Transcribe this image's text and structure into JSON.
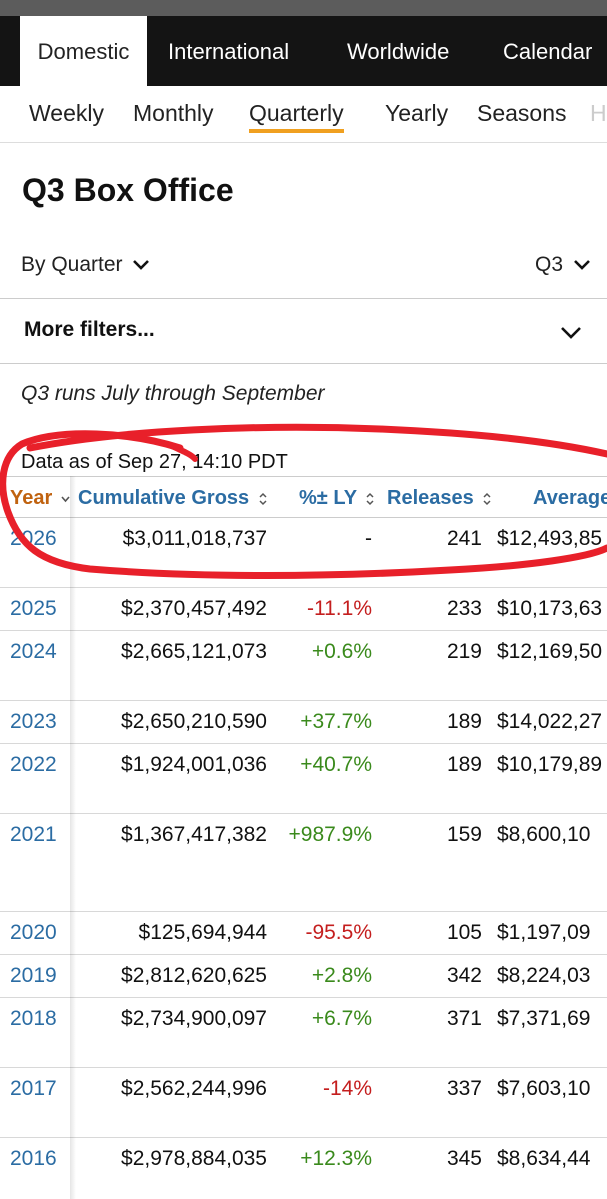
{
  "top_nav": {
    "tabs": [
      {
        "label": "Domestic"
      },
      {
        "label": "International"
      },
      {
        "label": "Worldwide"
      },
      {
        "label": "Calendar"
      }
    ]
  },
  "sub_nav": {
    "items": [
      {
        "label": "Weekly"
      },
      {
        "label": "Monthly"
      },
      {
        "label": "Quarterly"
      },
      {
        "label": "Yearly"
      },
      {
        "label": "Seasons"
      },
      {
        "label": "H"
      }
    ]
  },
  "page_title": "Q3 Box Office",
  "filters": {
    "by_label": "By Quarter",
    "quarter_value": "Q3",
    "more_filters": "More filters..."
  },
  "note": "Q3 runs July through September",
  "as_of": "Data as of Sep 27, 14:10 PDT",
  "table": {
    "headers": [
      "Year",
      "Cumulative Gross",
      "%± LY",
      "Releases",
      "Average"
    ],
    "rows": [
      {
        "year": "2026",
        "gross": "$3,011,018,737",
        "pct": "-",
        "releases": "241",
        "average": "$12,493,85"
      },
      {
        "year": "2025",
        "gross": "$2,370,457,492",
        "pct": "-11.1%",
        "releases": "233",
        "average": "$10,173,63"
      },
      {
        "year": "2024",
        "gross": "$2,665,121,073",
        "pct": "+0.6%",
        "releases": "219",
        "average": "$12,169,50"
      },
      {
        "year": "2023",
        "gross": "$2,650,210,590",
        "pct": "+37.7%",
        "releases": "189",
        "average": "$14,022,27"
      },
      {
        "year": "2022",
        "gross": "$1,924,001,036",
        "pct": "+40.7%",
        "releases": "189",
        "average": "$10,179,89"
      },
      {
        "year": "2021",
        "gross": "$1,367,417,382",
        "pct": "+987.9%",
        "releases": "159",
        "average": "$8,600,10"
      },
      {
        "year": "2020",
        "gross": "$125,694,944",
        "pct": "-95.5%",
        "releases": "105",
        "average": "$1,197,09"
      },
      {
        "year": "2019",
        "gross": "$2,812,620,625",
        "pct": "+2.8%",
        "releases": "342",
        "average": "$8,224,03"
      },
      {
        "year": "2018",
        "gross": "$2,734,900,097",
        "pct": "+6.7%",
        "releases": "371",
        "average": "$7,371,69"
      },
      {
        "year": "2017",
        "gross": "$2,562,244,996",
        "pct": "-14%",
        "releases": "337",
        "average": "$7,603,10"
      },
      {
        "year": "2016",
        "gross": "$2,978,884,035",
        "pct": "+12.3%",
        "releases": "345",
        "average": "$8,634,44"
      }
    ]
  },
  "colors": {
    "nav_bg": "#141414",
    "accent_underline": "#f0a020",
    "link_blue": "#2b6ca3",
    "sorted_header": "#c0620f",
    "negative": "#c41e1e",
    "positive": "#3a8a1c",
    "annotation_red": "#e8202a"
  },
  "icons": {
    "dropdown": "chevron-down-icon",
    "sort": "sort-arrows-icon"
  }
}
